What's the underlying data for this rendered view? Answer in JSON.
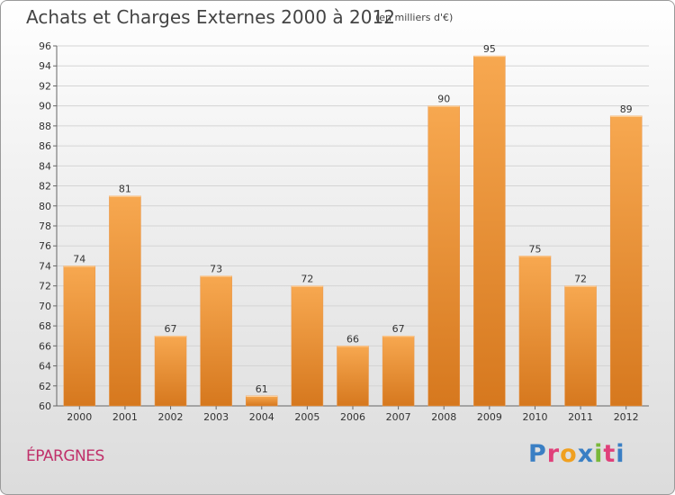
{
  "header": {
    "title": "Achats et Charges Externes 2000 à 2012",
    "subtitle": "(en milliers d'€)"
  },
  "footer": {
    "commune": "ÉPARGNES",
    "logo": "Proxiti"
  },
  "colors": {
    "bar_top": "#f7a850",
    "bar_bottom": "#d6781e",
    "gridline": "#d4d4d4",
    "commune": "#c0306a"
  },
  "chart_data": {
    "type": "bar",
    "title": "Achats et Charges Externes 2000 à 2012",
    "subtitle": "(en milliers d'€)",
    "xlabel": "",
    "ylabel": "",
    "categories": [
      "2000",
      "2001",
      "2002",
      "2003",
      "2004",
      "2005",
      "2006",
      "2007",
      "2008",
      "2009",
      "2010",
      "2011",
      "2012"
    ],
    "values": [
      74,
      81,
      67,
      73,
      61,
      72,
      66,
      67,
      90,
      95,
      75,
      72,
      89
    ],
    "ylim": [
      60,
      96
    ],
    "yticks": [
      60,
      62,
      64,
      66,
      68,
      70,
      72,
      74,
      76,
      78,
      80,
      82,
      84,
      86,
      88,
      90,
      92,
      94,
      96
    ],
    "grid": true,
    "data_labels": true
  }
}
